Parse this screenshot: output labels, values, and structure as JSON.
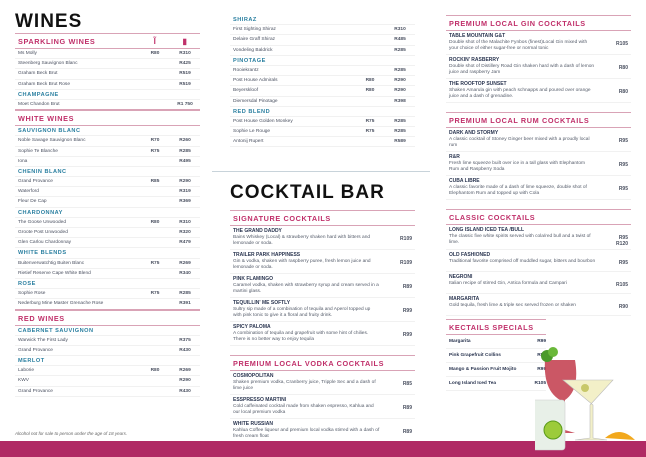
{
  "colors": {
    "accent": "#c0306a",
    "sub": "#2a7fa0",
    "bar": "#b02a64"
  },
  "left": [
    {
      "type": "title",
      "text": "WINES"
    },
    {
      "type": "heading",
      "text": "SPARKLING WINES",
      "icons": [
        "wine-glass-icon",
        "wine-bottle-icon"
      ]
    },
    {
      "type": "row",
      "name": "Ms Molly",
      "glass": "R80",
      "bottle": "R310"
    },
    {
      "type": "row",
      "name": "Steenberg Sauvignon Blanc",
      "glass": "",
      "bottle": "R425"
    },
    {
      "type": "row",
      "name": "Graham Beck Brut",
      "glass": "",
      "bottle": "R519"
    },
    {
      "type": "row",
      "name": "Graham Beck Brut Rose",
      "glass": "",
      "bottle": "R519"
    },
    {
      "type": "sub",
      "text": "CHAMPAGNE"
    },
    {
      "type": "row",
      "name": "Moet Chandon Brut",
      "glass": "",
      "bottle": "R1 750",
      "end": true
    },
    {
      "type": "heading",
      "text": "WHITE WINES"
    },
    {
      "type": "sub",
      "text": "SAUVIGNON BLANC"
    },
    {
      "type": "row",
      "name": "Noble Savage Sauvignon Blanc",
      "glass": "R70",
      "bottle": "R260"
    },
    {
      "type": "row",
      "name": "Sophie Te Blanche",
      "glass": "R75",
      "bottle": "R285"
    },
    {
      "type": "row",
      "name": "Iona",
      "glass": "",
      "bottle": "R495"
    },
    {
      "type": "sub",
      "text": "CHENIN BLANC"
    },
    {
      "type": "row",
      "name": "Grand Provance",
      "glass": "R85",
      "bottle": "R290"
    },
    {
      "type": "row",
      "name": "Waterford",
      "glass": "",
      "bottle": "R319"
    },
    {
      "type": "row",
      "name": "Fleur De Cap",
      "glass": "",
      "bottle": "R369"
    },
    {
      "type": "sub",
      "text": "CHARDONNAY"
    },
    {
      "type": "row",
      "name": "The Goose Unwooded",
      "glass": "R80",
      "bottle": "R310"
    },
    {
      "type": "row",
      "name": "Groote Post Unwooded",
      "glass": "",
      "bottle": "R320"
    },
    {
      "type": "row",
      "name": "Glen Carlou Chardonnay",
      "glass": "",
      "bottle": "R479"
    },
    {
      "type": "sub",
      "text": "WHITE BLENDS"
    },
    {
      "type": "row",
      "name": "Buitenverwatchtig Buiten Blanc",
      "glass": "R75",
      "bottle": "R269"
    },
    {
      "type": "row",
      "name": "Rietief Reserve Cape White Blend",
      "glass": "",
      "bottle": "R340"
    },
    {
      "type": "sub",
      "text": "ROSE"
    },
    {
      "type": "row",
      "name": "Sophie Rose",
      "glass": "R75",
      "bottle": "R285"
    },
    {
      "type": "row",
      "name": "Nederburg  Mine Master Grenache Rose",
      "glass": "",
      "bottle": "R391",
      "end": true
    },
    {
      "type": "heading",
      "text": "RED WINES"
    },
    {
      "type": "sub",
      "text": "CABERNET SAUVIGNON"
    },
    {
      "type": "row",
      "name": "Warwick The First Lady",
      "glass": "",
      "bottle": "R375"
    },
    {
      "type": "row",
      "name": "Grand Provance",
      "glass": "",
      "bottle": "R430"
    },
    {
      "type": "sub",
      "text": "MERLOT"
    },
    {
      "type": "row",
      "name": "Laborie",
      "glass": "R80",
      "bottle": "R269"
    },
    {
      "type": "row",
      "name": "KWV",
      "glass": "",
      "bottle": "R290"
    },
    {
      "type": "row",
      "name": "Grand Provance",
      "glass": "",
      "bottle": "R430"
    }
  ],
  "footnote": "Alcohol not for sale to person under the age of 18 years.",
  "mid": [
    {
      "type": "sub",
      "text": "SHIRAZ"
    },
    {
      "type": "row",
      "name": "First Sighting Shiraz",
      "glass": "",
      "bottle": "R310"
    },
    {
      "type": "row",
      "name": "Delaire Graff Shiraz",
      "glass": "",
      "bottle": "R485"
    },
    {
      "type": "row",
      "name": "Vondeling Baldrick",
      "glass": "",
      "bottle": "R285"
    },
    {
      "type": "sub",
      "text": "PINOTAGE"
    },
    {
      "type": "row",
      "name": "Rooiekrantz",
      "glass": "",
      "bottle": "R285"
    },
    {
      "type": "row",
      "name": "Post House Admirals",
      "glass": "R80",
      "bottle": "R290"
    },
    {
      "type": "row",
      "name": "Beyerskloof",
      "glass": "R80",
      "bottle": "R290"
    },
    {
      "type": "row",
      "name": "Diemersdal Pinotage",
      "glass": "",
      "bottle": "R398"
    },
    {
      "type": "sub",
      "text": "RED BLEND"
    },
    {
      "type": "row",
      "name": "Post House Golden Monkey",
      "glass": "R75",
      "bottle": "R285"
    },
    {
      "type": "row",
      "name": "Sophie Le Rouge",
      "glass": "R75",
      "bottle": "R285"
    },
    {
      "type": "row",
      "name": "Antonij Rupert",
      "glass": "",
      "bottle": "R589"
    }
  ],
  "mid2": [
    {
      "type": "bigtitle",
      "text": "COCKTAIL BAR"
    },
    {
      "type": "heading",
      "text": "SIGNATURE COCKTAILS"
    },
    {
      "type": "ck",
      "name": "THE GRAND DADDY",
      "desc": "Bains Whiskey (Local) & strawberry shaken hard with bitters and lemonade or soda.",
      "price": "R109"
    },
    {
      "type": "ck",
      "name": "TRAILER PARK HAPPINESS",
      "desc": "Gin & vodka, shaken with raspberry puree, fresh lemon juice and lemonade or soda.",
      "price": "R109"
    },
    {
      "type": "ck",
      "name": "PINK FLAMINGO",
      "desc": "Caramel vodka, shaken with strawberry syrup and cream served in a martini glass.",
      "price": "R89"
    },
    {
      "type": "ck",
      "name": "TEQUILLIN' ME SOFTLY",
      "desc": "Sultry sip made of a combination of tequila and Aperol topped up with pink tonic to give it a floral and fruity drink.",
      "price": "R99"
    },
    {
      "type": "ck",
      "name": "SPICY PALOMA",
      "desc": "A combination of tequila and grapefruit with some hint of chilies. There is no better way to enjoy tequila",
      "price": "R99",
      "end": true
    },
    {
      "type": "gap"
    },
    {
      "type": "heading",
      "text": "PREMIUM LOCAL VODKA COCKTAILS"
    },
    {
      "type": "ck",
      "name": "COSMOPOLITAN",
      "desc": "Shaken premium vodka, Cranberry juice, Tripple Sec and a dash of lime juice",
      "price": "R85"
    },
    {
      "type": "ck",
      "name": "ESSPRESSO MARTINI",
      "desc": "Cold caffeinated cocktail made from shaken espresso, Kahlua and our local premium vodka",
      "price": "R89"
    },
    {
      "type": "ck",
      "name": "WHITE RUSSIAN",
      "desc": "Kahlua Coffee liqueur and premium local vodka stirred with a dash of fresh cream float",
      "price": "R89"
    }
  ],
  "right": [
    {
      "type": "heading",
      "text": "PREMIUM LOCAL GIN COCKTAILS"
    },
    {
      "type": "ck",
      "name": "TABLE MOUNTAIN G&T",
      "desc": "Double shot of the Malachite Fynbos (finest)Local Gin mixed with your choice of either sugar-free or normal tonic",
      "price": "R105"
    },
    {
      "type": "ck",
      "name": "ROCKIN' RASBERRY",
      "desc": "Double shot of Distillery Road Gin shaken hard with a dash of lemon juice and raspberry Jam",
      "price": "R80"
    },
    {
      "type": "ck",
      "name": "THE ROOFTOP SUNSET",
      "desc": "Shaken Amarula  gin with peach schnapps and poured over orange juice and a dash of grenadine.",
      "price": "R80",
      "end": true
    },
    {
      "type": "gap"
    },
    {
      "type": "heading",
      "text": "PREMIUM LOCAL RUM COCKTAILS"
    },
    {
      "type": "ck",
      "name": "DARK AND STORMY",
      "desc": "A classic cocktail of Stoney Ginger beer mixed with a proudly local rum",
      "price": "R95"
    },
    {
      "type": "ck",
      "name": "R&R",
      "desc": "Fresh lime squeeze built over ice in a tall glass with Elephantom Rum and Raspberry Soda",
      "price": "R95"
    },
    {
      "type": "ck",
      "name": "CUBA LIBRE",
      "desc": "A classic favorite made of a dash of lime squeeze, double shot of Elephantom Rum and topped up with Cola",
      "price": "R95",
      "end": true
    },
    {
      "type": "gap"
    },
    {
      "type": "heading",
      "text": "CLASSIC COCKTAILS"
    },
    {
      "type": "ck",
      "name": "LONG ISLAND ICED TEA /BULL",
      "desc": "The classic five white spirits served with cola/red bull and a twist of lime.",
      "price": "R95\nR120"
    },
    {
      "type": "ck",
      "name": "OLD FASHIONED",
      "desc": "Traditional favorite comprised off muddled sugar, bitters and bourbon",
      "price": "R95"
    },
    {
      "type": "ck",
      "name": "NEGRONI",
      "desc": "Italian recipe of stirred Gin, Antica formula and Campari",
      "price": "R105"
    },
    {
      "type": "ck",
      "name": "MARGARITA",
      "desc": "Gold tequila, fresh lime & triple sec served frozen or shaken",
      "price": "R90"
    }
  ],
  "specials": [
    {
      "type": "heading",
      "text": "KECTAILS SPECIALS"
    },
    {
      "type": "sp",
      "name": "Margarita",
      "price": "R99"
    },
    {
      "type": "sp",
      "name": "Pink Grapefruit Collins",
      "price": "R99"
    },
    {
      "type": "sp",
      "name": "Mango & Passion Fruit Mojito",
      "price": "R99"
    },
    {
      "type": "sp",
      "name": "Long Island Iced Tea",
      "price": "R105"
    }
  ]
}
